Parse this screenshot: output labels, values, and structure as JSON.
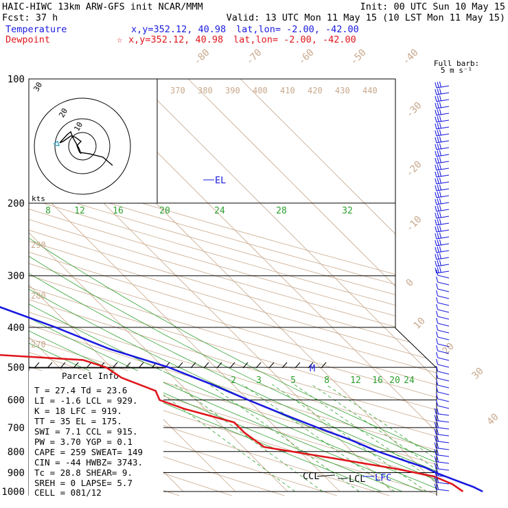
{
  "header": {
    "line1_left": "HAIC-HIWC 13km ARW-GFS init   NCAR/MMM",
    "line1_right": "Init: 00 UTC Sun 10 May 15",
    "line2_left": "Fcst:   37 h",
    "line2_right": "Valid: 13 UTC Mon 11 May 15 (10 LST Mon 11 May 15)",
    "temp_label": "Temperature",
    "temp_xy": "x,y=352.12, 40.98",
    "temp_latlon": "lat,lon= -2.00, -42.00",
    "dew_label": "Dewpoint",
    "dew_star": "☆",
    "dew_xy": "x,y=352.12, 40.98",
    "dew_latlon": "lat,lon= -2.00, -42.00",
    "colors": {
      "temperature": "#1a1adf",
      "dewpoint": "#e0151b",
      "mixing_ratio": "#2ea02e",
      "dry_adiabat": "#c8a88c"
    }
  },
  "barb_key": {
    "line1": "Full barb:",
    "line2": "5 m s⁻¹"
  },
  "hodograph": {
    "ring_labels": [
      "10",
      "20",
      "30"
    ],
    "units": "kts"
  },
  "levels": {
    "el": "EL",
    "m": "M",
    "ccl": "CCL",
    "lcl": "LCL",
    "lfc": "LFC"
  },
  "parcel_info": {
    "title": "Parcel Info",
    "rows": [
      "T  =   27.4  Td =  23.6",
      "LI =   -1.6  LCL =  929.",
      "K  =     18  LFC =  919.",
      "TT =     35  EL  =  175.",
      "SWI =   7.1  CCL =  915.",
      "PW =   3.70  YGP =   0.1",
      "CAPE =  259  SWEAT=  149",
      "CIN =   -44  HWBZ= 3743.",
      "Tc =   28.8  SHEAR=   9.",
      "SREH =    0  LAPSE=  5.7",
      "CELL = 081/12"
    ]
  },
  "chart_data": {
    "type": "line",
    "title": "",
    "pressure_levels_hPa": [
      "100",
      "200",
      "300",
      "400",
      "500",
      "600",
      "700",
      "800",
      "900",
      "1000"
    ],
    "isotherm_labels_C": [
      "-80",
      "-70",
      "-60",
      "-50",
      "-40",
      "-30",
      "-20",
      "-10",
      "0",
      "10",
      "20",
      "30",
      "40"
    ],
    "theta_labels_K": [
      "370",
      "380",
      "390",
      "400",
      "410",
      "420",
      "430",
      "440"
    ],
    "theta_labels_left_K": [
      "290",
      "280",
      "270"
    ],
    "mixing_ratio_upper_g_kg": [
      "8",
      "12",
      "16",
      "20",
      "24",
      "28",
      "32"
    ],
    "mixing_ratio_lower_g_kg": [
      "2",
      "3",
      "5",
      "8",
      "12",
      "16",
      "20",
      "24"
    ],
    "series": [
      {
        "name": "Temperature",
        "color": "#1a1adf",
        "points": [
          [
            100,
            -76
          ],
          [
            115,
            -73
          ],
          [
            130,
            -70
          ],
          [
            150,
            -66
          ],
          [
            175,
            -62
          ],
          [
            200,
            -58
          ],
          [
            250,
            -48
          ],
          [
            300,
            -39
          ],
          [
            350,
            -31
          ],
          [
            400,
            -23
          ],
          [
            450,
            -17
          ],
          [
            500,
            -9
          ],
          [
            550,
            -4
          ],
          [
            600,
            0
          ],
          [
            650,
            4
          ],
          [
            700,
            8
          ],
          [
            750,
            12
          ],
          [
            800,
            15
          ],
          [
            850,
            19
          ],
          [
            875,
            21
          ],
          [
            900,
            22
          ],
          [
            925,
            23.5
          ],
          [
            950,
            25
          ],
          [
            975,
            26.5
          ],
          [
            1000,
            27.4
          ]
        ]
      },
      {
        "name": "Dewpoint",
        "color": "#e0151b",
        "points": [
          [
            100,
            -84
          ],
          [
            120,
            -86
          ],
          [
            150,
            -94
          ],
          [
            175,
            -92
          ],
          [
            200,
            -87
          ],
          [
            220,
            -90
          ],
          [
            250,
            -100
          ],
          [
            280,
            -84
          ],
          [
            300,
            -95
          ],
          [
            330,
            -86
          ],
          [
            360,
            -82
          ],
          [
            400,
            -90
          ],
          [
            430,
            -83
          ],
          [
            480,
            -24
          ],
          [
            500,
            -21
          ],
          [
            530,
            -20
          ],
          [
            570,
            -16
          ],
          [
            600,
            -17
          ],
          [
            630,
            -14
          ],
          [
            680,
            -7
          ],
          [
            720,
            -7
          ],
          [
            780,
            -6
          ],
          [
            830,
            5
          ],
          [
            880,
            15
          ],
          [
            920,
            21
          ],
          [
            960,
            23
          ],
          [
            1000,
            23.6
          ]
        ]
      }
    ]
  }
}
